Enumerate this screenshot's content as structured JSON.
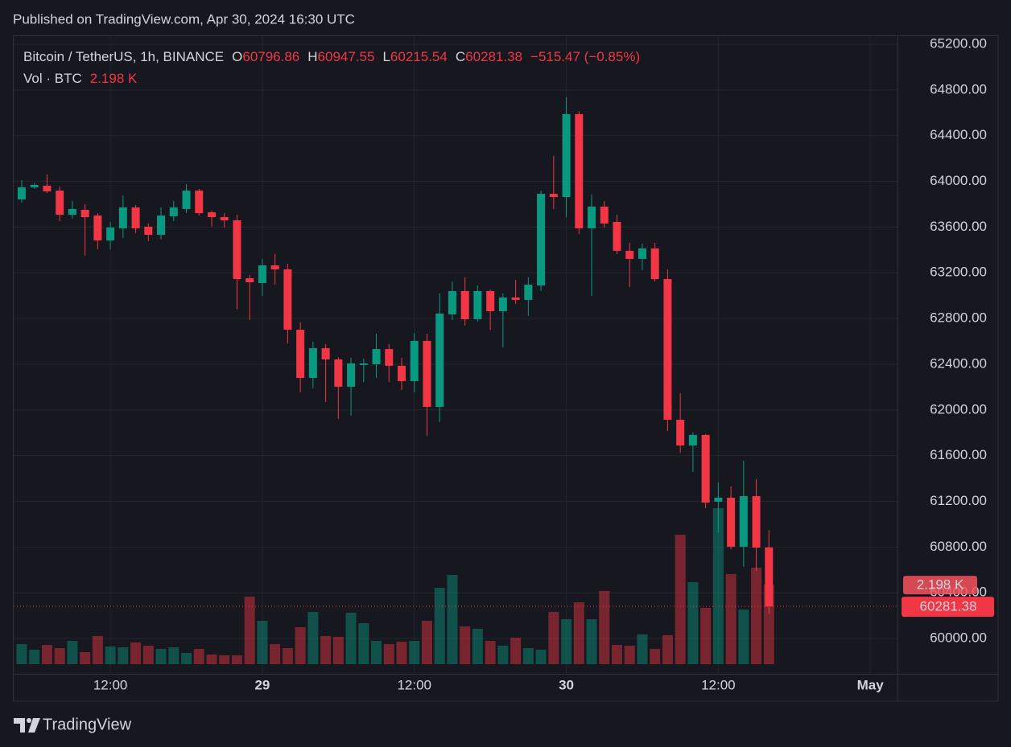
{
  "header": "Published on TradingView.com, Apr 30, 2024 16:30 UTC",
  "footer": "TradingView",
  "chart_data": {
    "type": "candlestick",
    "title": "Bitcoin / TetherUS, 1h, BINANCE",
    "ohlc_letters": [
      "O",
      "H",
      "L",
      "C"
    ],
    "change_label": "−515.47 (−0.85%)",
    "up_color": "#089981",
    "down_color": "#f23645",
    "x": [
      "2024-04-28 05:00",
      "2024-04-28 06:00",
      "2024-04-28 07:00",
      "2024-04-28 08:00",
      "2024-04-28 09:00",
      "2024-04-28 10:00",
      "2024-04-28 11:00",
      "2024-04-28 12:00",
      "2024-04-28 13:00",
      "2024-04-28 14:00",
      "2024-04-28 15:00",
      "2024-04-28 16:00",
      "2024-04-28 17:00",
      "2024-04-28 18:00",
      "2024-04-28 19:00",
      "2024-04-28 20:00",
      "2024-04-28 21:00",
      "2024-04-28 22:00",
      "2024-04-28 23:00",
      "2024-04-29 00:00",
      "2024-04-29 01:00",
      "2024-04-29 02:00",
      "2024-04-29 03:00",
      "2024-04-29 04:00",
      "2024-04-29 05:00",
      "2024-04-29 06:00",
      "2024-04-29 07:00",
      "2024-04-29 08:00",
      "2024-04-29 09:00",
      "2024-04-29 10:00",
      "2024-04-29 11:00",
      "2024-04-29 12:00",
      "2024-04-29 13:00",
      "2024-04-29 14:00",
      "2024-04-29 15:00",
      "2024-04-29 16:00",
      "2024-04-29 17:00",
      "2024-04-29 18:00",
      "2024-04-29 19:00",
      "2024-04-29 20:00",
      "2024-04-29 21:00",
      "2024-04-29 22:00",
      "2024-04-29 23:00",
      "2024-04-30 00:00",
      "2024-04-30 01:00",
      "2024-04-30 02:00",
      "2024-04-30 03:00",
      "2024-04-30 04:00",
      "2024-04-30 05:00",
      "2024-04-30 06:00",
      "2024-04-30 07:00",
      "2024-04-30 08:00",
      "2024-04-30 09:00",
      "2024-04-30 10:00",
      "2024-04-30 11:00",
      "2024-04-30 12:00",
      "2024-04-30 13:00",
      "2024-04-30 14:00",
      "2024-04-30 15:00",
      "2024-04-30 16:00"
    ],
    "open": [
      63842,
      63948,
      63962,
      63919,
      63708,
      63751,
      63701,
      63483,
      63589,
      63772,
      63603,
      63532,
      63694,
      63758,
      63919,
      63729,
      63687,
      63659,
      63152,
      63110,
      63265,
      63230,
      62702,
      62280,
      62540,
      62442,
      62203,
      62393,
      62400,
      62533,
      62386,
      62252,
      62604,
      62027,
      62836,
      63040,
      62794,
      63040,
      62864,
      62984,
      62963,
      63089,
      63891,
      63863,
      64588,
      63589,
      63779,
      63645,
      63392,
      63321,
      63413,
      63145,
      61914,
      61689,
      61781,
      61197,
      61232,
      60803,
      61246,
      60796.86
    ],
    "high": [
      64011,
      63983,
      64060,
      63955,
      63828,
      63800,
      63722,
      63645,
      63877,
      63793,
      63631,
      63772,
      63828,
      63976,
      63934,
      63744,
      63722,
      63708,
      63181,
      63321,
      63364,
      63279,
      62766,
      62597,
      62576,
      62463,
      62456,
      62449,
      62667,
      62576,
      62456,
      62674,
      62667,
      63019,
      63124,
      63160,
      63089,
      63054,
      63019,
      63138,
      63160,
      63919,
      64222,
      64736,
      64616,
      63884,
      63828,
      63708,
      63462,
      63455,
      63462,
      63230,
      62146,
      61802,
      61788,
      61365,
      61330,
      61555,
      61394,
      60947.55
    ],
    "low": [
      63814,
      63934,
      63898,
      63652,
      63673,
      63350,
      63406,
      63406,
      63504,
      63547,
      63476,
      63490,
      63652,
      63722,
      63701,
      63603,
      63596,
      62878,
      62787,
      62998,
      63096,
      62583,
      62153,
      62189,
      62069,
      61921,
      61949,
      62245,
      62280,
      62245,
      62175,
      62153,
      61773,
      61893,
      62787,
      62737,
      62773,
      62702,
      62547,
      62927,
      62822,
      63040,
      63758,
      63687,
      63539,
      62998,
      63596,
      63364,
      63075,
      63223,
      63124,
      61816,
      61626,
      61457,
      61140,
      60929,
      60781,
      60627,
      60591,
      60215.54
    ],
    "close": [
      63948,
      63969,
      63912,
      63708,
      63758,
      63687,
      63483,
      63596,
      63772,
      63589,
      63532,
      63701,
      63772,
      63919,
      63722,
      63687,
      63659,
      63145,
      63117,
      63265,
      63230,
      62702,
      62280,
      62540,
      62442,
      62203,
      62407,
      62407,
      62533,
      62386,
      62252,
      62604,
      62027,
      62843,
      63040,
      62794,
      63040,
      62864,
      62984,
      62963,
      63096,
      63891,
      63863,
      64588,
      63589,
      63779,
      63631,
      63392,
      63321,
      63413,
      63145,
      61914,
      61689,
      61781,
      61189,
      61232,
      60803,
      61246,
      60795,
      60281.38
    ],
    "volume": {
      "name": "Vol · BTC",
      "values": [
        556,
        400,
        533,
        444,
        644,
        333,
        778,
        489,
        467,
        600,
        511,
        422,
        467,
        311,
        422,
        267,
        244,
        244,
        1867,
        1200,
        556,
        444,
        1022,
        1444,
        778,
        756,
        1422,
        1133,
        644,
        556,
        622,
        644,
        1200,
        2111,
        2467,
        1044,
        978,
        644,
        511,
        733,
        444,
        400,
        1444,
        1244,
        1711,
        1244,
        2022,
        533,
        511,
        822,
        422,
        800,
        3578,
        2267,
        1556,
        4311,
        2489,
        1511,
        2667,
        2198
      ],
      "value_labels": [
        null,
        null,
        null,
        null,
        null,
        null,
        null,
        null,
        null,
        null,
        null,
        null,
        null,
        null,
        null,
        null,
        null,
        null,
        null,
        null,
        null,
        null,
        null,
        null,
        null,
        null,
        null,
        null,
        null,
        null,
        null,
        null,
        null,
        null,
        null,
        null,
        null,
        null,
        null,
        null,
        null,
        null,
        null,
        null,
        null,
        null,
        null,
        null,
        null,
        null,
        null,
        null,
        null,
        null,
        null,
        null,
        null,
        null,
        null,
        "2.198 K"
      ]
    },
    "xlim": [
      "2024-04-28 04:22",
      "2024-05-01 02:09"
    ],
    "xticks": [
      {
        "value": "2024-04-28 12:00",
        "label": "12:00"
      },
      {
        "value": "2024-04-29 00:00",
        "label": "29"
      },
      {
        "value": "2024-04-29 12:00",
        "label": "12:00"
      },
      {
        "value": "2024-04-30 00:00",
        "label": "30"
      },
      {
        "value": "2024-04-30 12:00",
        "label": "12:00"
      },
      {
        "value": "2024-05-01 00:00",
        "label": "May"
      }
    ],
    "ylim": [
      59691,
      65270
    ],
    "yticks": [
      {
        "value": 65200,
        "label": "65200.00"
      },
      {
        "value": 64800,
        "label": "64800.00"
      },
      {
        "value": 64400,
        "label": "64400.00"
      },
      {
        "value": 64000,
        "label": "64000.00"
      },
      {
        "value": 63600,
        "label": "63600.00"
      },
      {
        "value": 63200,
        "label": "63200.00"
      },
      {
        "value": 62800,
        "label": "62800.00"
      },
      {
        "value": 62400,
        "label": "62400.00"
      },
      {
        "value": 62000,
        "label": "62000.00"
      },
      {
        "value": 61600,
        "label": "61600.00"
      },
      {
        "value": 61200,
        "label": "61200.00"
      },
      {
        "value": 60800,
        "label": "60800.00"
      },
      {
        "value": 60400,
        "label": "60400.00"
      },
      {
        "value": 60000,
        "label": "60000.00"
      }
    ],
    "grid": true
  }
}
